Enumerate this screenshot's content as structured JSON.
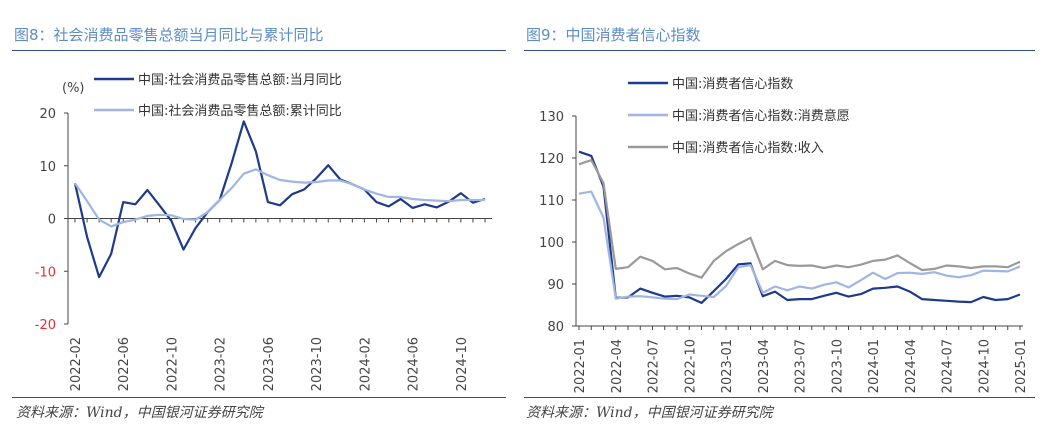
{
  "charts": [
    {
      "id": "left",
      "title": "图8：社会消费品零售总额当月同比与累计同比",
      "source": "资料来源：Wind，中国银河证券研究院",
      "chart_data": {
        "type": "line",
        "unit_label": "(%)",
        "ylim": [
          -20,
          20
        ],
        "yticks": [
          20,
          10,
          0,
          -10,
          -20
        ],
        "negative_tick_color": "#e03030",
        "x": [
          "2022-02",
          "2022-03",
          "2022-04",
          "2022-05",
          "2022-06",
          "2022-07",
          "2022-08",
          "2022-09",
          "2022-10",
          "2022-11",
          "2022-12",
          "2023-01",
          "2023-02",
          "2023-03",
          "2023-04",
          "2023-05",
          "2023-06",
          "2023-07",
          "2023-08",
          "2023-09",
          "2023-10",
          "2023-11",
          "2023-12",
          "2024-01",
          "2024-02",
          "2024-03",
          "2024-04",
          "2024-05",
          "2024-06",
          "2024-07",
          "2024-08",
          "2024-09",
          "2024-10",
          "2024-11",
          "2024-12"
        ],
        "xtick_labels": [
          "2022-02",
          "2022-06",
          "2022-10",
          "2023-02",
          "2023-06",
          "2023-10",
          "2024-02",
          "2024-06",
          "2024-10"
        ],
        "legend_position": "top",
        "series": [
          {
            "name": "中国:社会消费品零售总额:当月同比",
            "color": "#1f3a8a",
            "values": [
              6.7,
              -3.5,
              -11.1,
              -6.7,
              3.1,
              2.7,
              5.4,
              2.5,
              -0.5,
              -5.9,
              -1.8,
              1.2,
              3.5,
              10.6,
              18.4,
              12.7,
              3.1,
              2.5,
              4.6,
              5.5,
              7.6,
              10.1,
              7.4,
              6.5,
              5.5,
              3.1,
              2.3,
              3.7,
              2.0,
              2.7,
              2.1,
              3.2,
              4.8,
              3.0,
              3.7
            ]
          },
          {
            "name": "中国:社会消费品零售总额:累计同比",
            "color": "#9fb6e3",
            "values": [
              6.7,
              3.3,
              -0.2,
              -1.5,
              -0.7,
              -0.2,
              0.5,
              0.7,
              0.6,
              -0.1,
              -0.2,
              1.2,
              3.5,
              5.8,
              8.5,
              9.3,
              8.2,
              7.3,
              7.0,
              6.8,
              6.9,
              7.2,
              7.2,
              6.5,
              5.5,
              4.7,
              4.1,
              4.1,
              3.7,
              3.5,
              3.4,
              3.3,
              3.5,
              3.5,
              3.5
            ]
          }
        ]
      }
    },
    {
      "id": "right",
      "title": "图9：中国消费者信心指数",
      "source": "资料来源：Wind，中国银河证券研究院",
      "chart_data": {
        "type": "line",
        "ylim": [
          80,
          130
        ],
        "yticks": [
          130,
          120,
          110,
          100,
          90,
          80
        ],
        "x": [
          "2022-01",
          "2022-02",
          "2022-03",
          "2022-04",
          "2022-05",
          "2022-06",
          "2022-07",
          "2022-08",
          "2022-09",
          "2022-10",
          "2022-11",
          "2022-12",
          "2023-01",
          "2023-02",
          "2023-03",
          "2023-04",
          "2023-05",
          "2023-06",
          "2023-07",
          "2023-08",
          "2023-09",
          "2023-10",
          "2023-11",
          "2023-12",
          "2024-01",
          "2024-02",
          "2024-03",
          "2024-04",
          "2024-05",
          "2024-06",
          "2024-07",
          "2024-08",
          "2024-09",
          "2024-10",
          "2024-11",
          "2024-12",
          "2025-01"
        ],
        "xtick_labels": [
          "2022-01",
          "2022-04",
          "2022-07",
          "2022-10",
          "2023-01",
          "2023-04",
          "2023-07",
          "2023-10",
          "2024-01",
          "2024-04",
          "2024-07",
          "2024-10",
          "2025-01"
        ],
        "legend_position": "top",
        "series": [
          {
            "name": "中国:消费者信心指数",
            "color": "#1f3a8a",
            "values": [
              121.5,
              120.5,
              113.2,
              86.7,
              86.8,
              88.9,
              87.9,
              87.0,
              87.2,
              86.8,
              85.5,
              88.3,
              91.2,
              94.7,
              94.9,
              87.1,
              88.2,
              86.2,
              86.4,
              86.4,
              87.2,
              87.9,
              87.0,
              87.6,
              88.9,
              89.1,
              89.4,
              88.2,
              86.4,
              86.2,
              86.0,
              85.8,
              85.7,
              86.9,
              86.2,
              86.4,
              87.5
            ]
          },
          {
            "name": "中国:消费者信心指数:消费意愿",
            "color": "#9fb6e3",
            "values": [
              111.5,
              112.0,
              105.8,
              86.5,
              87.0,
              87.1,
              86.8,
              86.5,
              86.4,
              87.5,
              87.2,
              86.9,
              89.5,
              94.0,
              94.5,
              87.9,
              89.4,
              88.5,
              89.4,
              88.9,
              89.8,
              90.4,
              89.2,
              90.9,
              92.7,
              91.2,
              92.6,
              92.7,
              92.4,
              92.8,
              92.0,
              91.6,
              92.1,
              93.2,
              93.1,
              93.0,
              94.2
            ]
          },
          {
            "name": "中国:消费者信心指数:收入",
            "color": "#9a9a9a",
            "values": [
              118.5,
              119.5,
              114.0,
              93.6,
              94.0,
              96.5,
              95.5,
              93.5,
              93.8,
              92.5,
              91.5,
              95.5,
              97.8,
              99.5,
              101.0,
              93.5,
              95.5,
              94.5,
              94.3,
              94.4,
              93.8,
              94.4,
              94.0,
              94.6,
              95.5,
              95.8,
              96.8,
              95.0,
              93.3,
              93.6,
              94.4,
              94.2,
              93.8,
              94.2,
              94.2,
              94.0,
              95.3
            ]
          }
        ]
      }
    }
  ]
}
